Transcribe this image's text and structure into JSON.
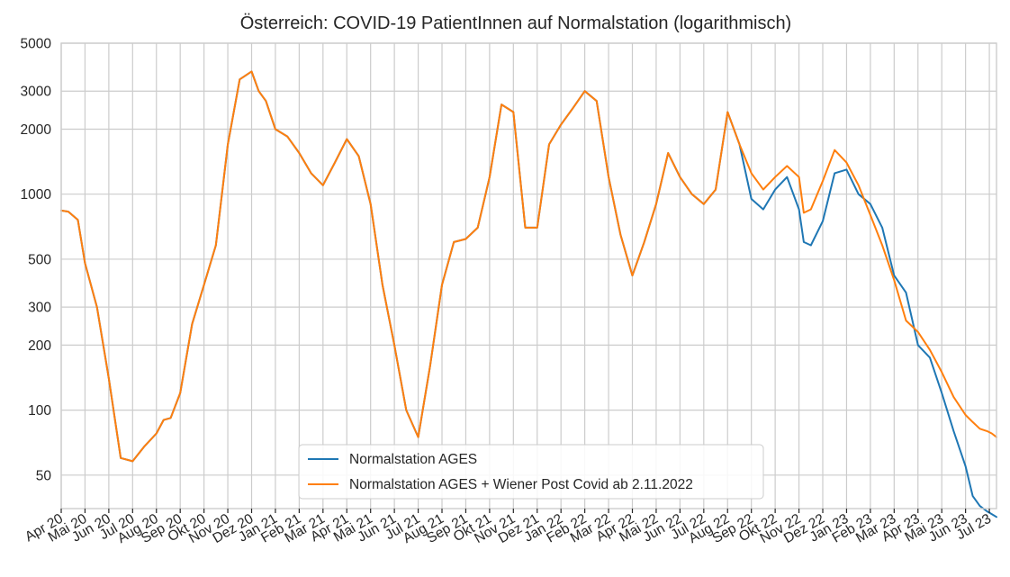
{
  "chart_data": {
    "type": "line",
    "title": "Österreich: COVID-19 PatientInnen auf Normalstation (logarithmisch)",
    "xlabel": "",
    "ylabel": "",
    "y_scale": "log",
    "ylim": [
      35,
      5000
    ],
    "x_range_months": [
      0,
      39.3
    ],
    "x_ticks": [
      "Apr 20",
      "Mai 20",
      "Jun 20",
      "Jul 20",
      "Aug 20",
      "Sep 20",
      "Okt 20",
      "Nov 20",
      "Dez 20",
      "Jan 21",
      "Feb 21",
      "Mar 21",
      "Apr 21",
      "Mai 21",
      "Jun 21",
      "Jul 21",
      "Aug 21",
      "Sep 21",
      "Okt 21",
      "Nov 21",
      "Dez 21",
      "Jan 22",
      "Feb 22",
      "Mar 22",
      "Apr 22",
      "Mai 22",
      "Jun 22",
      "Jul 22",
      "Aug 22",
      "Sep 22",
      "Okt 22",
      "Nov 22",
      "Dez 22",
      "Jan 23",
      "Feb 23",
      "Mar 23",
      "Apr 23",
      "Mai 23",
      "Jun 23",
      "Jul 23"
    ],
    "y_ticks": [
      50,
      100,
      200,
      300,
      500,
      1000,
      2000,
      3000,
      5000
    ],
    "y_tick_labels": [
      "50",
      "100",
      "200",
      "300",
      "500",
      "1000",
      "2000",
      "3000",
      "5000"
    ],
    "grid": true,
    "legend_position": "bottom-center",
    "series": [
      {
        "name": "Normalstation AGES",
        "color": "#1f77b4",
        "x_months": [
          0.0,
          0.3,
          0.7,
          1.0,
          1.5,
          2.0,
          2.5,
          3.0,
          3.5,
          4.0,
          4.3,
          4.6,
          5.0,
          5.5,
          6.0,
          6.5,
          7.0,
          7.5,
          8.0,
          8.3,
          8.6,
          9.0,
          9.5,
          10.0,
          10.5,
          11.0,
          11.5,
          12.0,
          12.5,
          13.0,
          13.5,
          14.0,
          14.5,
          15.0,
          15.5,
          16.0,
          16.5,
          17.0,
          17.5,
          18.0,
          18.5,
          19.0,
          19.5,
          20.0,
          20.5,
          21.0,
          21.5,
          22.0,
          22.5,
          23.0,
          23.5,
          24.0,
          24.5,
          25.0,
          25.5,
          26.0,
          26.5,
          27.0,
          27.5,
          28.0,
          28.5,
          29.0,
          29.5,
          30.0,
          30.5,
          31.0,
          31.2,
          31.5,
          32.0,
          32.5,
          33.0,
          33.5,
          34.0,
          34.5,
          35.0,
          35.5,
          36.0,
          36.5,
          37.0,
          37.5,
          38.0,
          38.3,
          38.6,
          38.9,
          39.1,
          39.3
        ],
        "values": [
          840,
          830,
          760,
          480,
          300,
          140,
          60,
          58,
          68,
          78,
          90,
          92,
          120,
          250,
          380,
          580,
          1700,
          3400,
          3700,
          3000,
          2700,
          2000,
          1850,
          1550,
          1250,
          1100,
          1400,
          1800,
          1500,
          900,
          380,
          200,
          100,
          75,
          160,
          380,
          600,
          620,
          700,
          1200,
          2600,
          2400,
          700,
          700,
          1700,
          2100,
          2500,
          3000,
          2700,
          1200,
          650,
          420,
          600,
          900,
          1550,
          1200,
          1000,
          900,
          1050,
          2400,
          1700,
          950,
          850,
          1050,
          1200,
          850,
          600,
          580,
          750,
          1250,
          1300,
          1000,
          900,
          700,
          420,
          350,
          200,
          175,
          120,
          80,
          55,
          40,
          36,
          34,
          33,
          32
        ],
        "note": "blue AGES series visually identical to orange until Nov 2022, then diverges below"
      },
      {
        "name": "Normalstation AGES + Wiener Post Covid ab 2.11.2022",
        "color": "#ff7f0e",
        "x_months": [
          0.0,
          0.3,
          0.7,
          1.0,
          1.5,
          2.0,
          2.5,
          3.0,
          3.5,
          4.0,
          4.3,
          4.6,
          5.0,
          5.5,
          6.0,
          6.5,
          7.0,
          7.5,
          8.0,
          8.3,
          8.6,
          9.0,
          9.5,
          10.0,
          10.5,
          11.0,
          11.5,
          12.0,
          12.5,
          13.0,
          13.5,
          14.0,
          14.5,
          15.0,
          15.5,
          16.0,
          16.5,
          17.0,
          17.5,
          18.0,
          18.5,
          19.0,
          19.5,
          20.0,
          20.5,
          21.0,
          21.5,
          22.0,
          22.5,
          23.0,
          23.5,
          24.0,
          24.5,
          25.0,
          25.5,
          26.0,
          26.5,
          27.0,
          27.5,
          28.0,
          28.5,
          29.0,
          29.5,
          30.0,
          30.5,
          31.0,
          31.2,
          31.5,
          32.0,
          32.5,
          33.0,
          33.5,
          34.0,
          34.5,
          35.0,
          35.5,
          36.0,
          36.5,
          37.0,
          37.5,
          38.0,
          38.3,
          38.6,
          38.9,
          39.1,
          39.3
        ],
        "values": [
          840,
          830,
          760,
          480,
          300,
          140,
          60,
          58,
          68,
          78,
          90,
          92,
          120,
          250,
          380,
          580,
          1700,
          3400,
          3700,
          3000,
          2700,
          2000,
          1850,
          1550,
          1250,
          1100,
          1400,
          1800,
          1500,
          900,
          380,
          200,
          100,
          75,
          160,
          380,
          600,
          620,
          700,
          1200,
          2600,
          2400,
          700,
          700,
          1700,
          2100,
          2500,
          3000,
          2700,
          1200,
          650,
          420,
          600,
          900,
          1550,
          1200,
          1000,
          900,
          1050,
          2400,
          1700,
          1250,
          1050,
          1200,
          1350,
          1200,
          820,
          850,
          1150,
          1600,
          1400,
          1100,
          800,
          580,
          400,
          260,
          230,
          190,
          150,
          115,
          95,
          88,
          82,
          80,
          78,
          75
        ]
      }
    ]
  }
}
